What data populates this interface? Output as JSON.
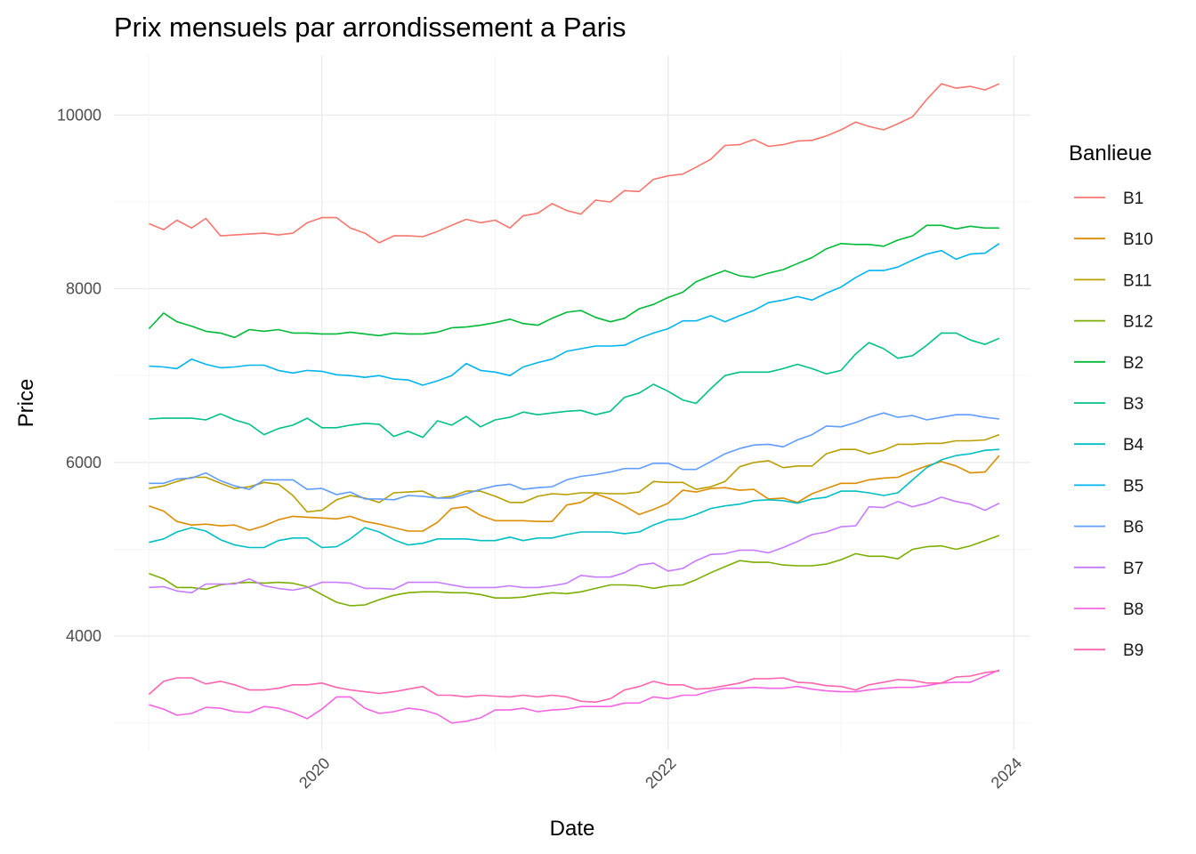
{
  "chart_data": {
    "type": "line",
    "title": "Prix mensuels par arrondissement a Paris",
    "xlabel": "Date",
    "ylabel": "Price",
    "x_ticks": [
      "2020",
      "2022",
      "2024"
    ],
    "y_ticks": [
      "4000",
      "6000",
      "8000",
      "10000"
    ],
    "xlim": [
      "2018-10-19",
      "2024-02-05"
    ],
    "ylim": [
      2690,
      10690
    ],
    "grid": true,
    "legend": {
      "title": "Banlieue",
      "position": "right"
    },
    "x": [
      "2019-01-01",
      "2019-02-01",
      "2019-03-01",
      "2019-04-01",
      "2019-05-01",
      "2019-06-01",
      "2019-07-01",
      "2019-08-01",
      "2019-09-01",
      "2019-10-01",
      "2019-11-01",
      "2019-12-01",
      "2020-01-01",
      "2020-02-01",
      "2020-03-01",
      "2020-04-01",
      "2020-05-01",
      "2020-06-01",
      "2020-07-01",
      "2020-08-01",
      "2020-09-01",
      "2020-10-01",
      "2020-11-01",
      "2020-12-01",
      "2021-01-01",
      "2021-02-01",
      "2021-03-01",
      "2021-04-01",
      "2021-05-01",
      "2021-06-01",
      "2021-07-01",
      "2021-08-01",
      "2021-09-01",
      "2021-10-01",
      "2021-11-01",
      "2021-12-01",
      "2022-01-01",
      "2022-02-01",
      "2022-03-01",
      "2022-04-01",
      "2022-05-01",
      "2022-06-01",
      "2022-07-01",
      "2022-08-01",
      "2022-09-01",
      "2022-10-01",
      "2022-11-01",
      "2022-12-01",
      "2023-01-01",
      "2023-02-01",
      "2023-03-01",
      "2023-04-01",
      "2023-05-01",
      "2023-06-01",
      "2023-07-01",
      "2023-08-01",
      "2023-09-01",
      "2023-10-01",
      "2023-11-01",
      "2023-12-01"
    ],
    "series": [
      {
        "name": "B1",
        "color": "#F8766D",
        "values": [
          8750,
          8680,
          8790,
          8700,
          8810,
          8610,
          8620,
          8630,
          8640,
          8620,
          8640,
          8760,
          8820,
          8820,
          8700,
          8640,
          8530,
          8610,
          8610,
          8600,
          8660,
          8730,
          8800,
          8760,
          8790,
          8700,
          8840,
          8870,
          8980,
          8900,
          8860,
          9020,
          9000,
          9130,
          9120,
          9260,
          9300,
          9320,
          9400,
          9490,
          9650,
          9660,
          9720,
          9640,
          9660,
          9700,
          9710,
          9760,
          9830,
          9920,
          9870,
          9830,
          9900,
          9980,
          10180,
          10360,
          10310,
          10330,
          10290,
          10360
        ]
      },
      {
        "name": "B10",
        "color": "#DE8C00",
        "values": [
          5500,
          5440,
          5320,
          5280,
          5290,
          5270,
          5280,
          5220,
          5270,
          5340,
          5380,
          5370,
          5360,
          5350,
          5380,
          5320,
          5290,
          5250,
          5210,
          5210,
          5310,
          5470,
          5490,
          5390,
          5330,
          5330,
          5330,
          5320,
          5320,
          5510,
          5540,
          5640,
          5580,
          5500,
          5400,
          5460,
          5530,
          5680,
          5660,
          5700,
          5710,
          5680,
          5690,
          5580,
          5590,
          5540,
          5640,
          5700,
          5760,
          5760,
          5800,
          5820,
          5830,
          5900,
          5960,
          6010,
          5960,
          5880,
          5890,
          6080
        ]
      },
      {
        "name": "B11",
        "color": "#B79F00",
        "values": [
          5700,
          5730,
          5780,
          5830,
          5830,
          5760,
          5700,
          5720,
          5770,
          5750,
          5620,
          5430,
          5450,
          5570,
          5620,
          5590,
          5540,
          5650,
          5660,
          5670,
          5590,
          5610,
          5670,
          5670,
          5610,
          5540,
          5540,
          5610,
          5640,
          5630,
          5650,
          5650,
          5640,
          5640,
          5660,
          5780,
          5770,
          5770,
          5690,
          5720,
          5780,
          5950,
          6000,
          6020,
          5940,
          5960,
          5960,
          6100,
          6150,
          6150,
          6100,
          6140,
          6210,
          6210,
          6220,
          6220,
          6250,
          6250,
          6260,
          6320
        ]
      },
      {
        "name": "B12",
        "color": "#7CAE00",
        "values": [
          4720,
          4660,
          4560,
          4560,
          4540,
          4590,
          4610,
          4620,
          4610,
          4620,
          4610,
          4570,
          4480,
          4390,
          4350,
          4360,
          4420,
          4470,
          4500,
          4510,
          4510,
          4500,
          4500,
          4480,
          4440,
          4440,
          4450,
          4480,
          4500,
          4490,
          4510,
          4550,
          4590,
          4590,
          4580,
          4550,
          4580,
          4590,
          4650,
          4730,
          4800,
          4870,
          4850,
          4850,
          4820,
          4810,
          4810,
          4830,
          4880,
          4950,
          4920,
          4920,
          4890,
          5000,
          5030,
          5040,
          5000,
          5040,
          5100,
          5160
        ]
      },
      {
        "name": "B2",
        "color": "#00BA38",
        "values": [
          7540,
          7720,
          7620,
          7570,
          7510,
          7490,
          7440,
          7530,
          7510,
          7530,
          7490,
          7490,
          7480,
          7480,
          7500,
          7480,
          7460,
          7490,
          7480,
          7480,
          7500,
          7550,
          7560,
          7580,
          7610,
          7650,
          7600,
          7580,
          7660,
          7730,
          7750,
          7670,
          7620,
          7660,
          7770,
          7820,
          7900,
          7960,
          8080,
          8150,
          8210,
          8150,
          8130,
          8180,
          8220,
          8290,
          8360,
          8460,
          8520,
          8510,
          8510,
          8490,
          8560,
          8610,
          8730,
          8730,
          8690,
          8720,
          8700,
          8700
        ]
      },
      {
        "name": "B3",
        "color": "#00C08B",
        "values": [
          6500,
          6510,
          6510,
          6510,
          6490,
          6560,
          6490,
          6440,
          6320,
          6390,
          6430,
          6510,
          6400,
          6400,
          6430,
          6450,
          6440,
          6300,
          6360,
          6290,
          6480,
          6430,
          6530,
          6410,
          6490,
          6520,
          6580,
          6550,
          6570,
          6590,
          6600,
          6550,
          6590,
          6750,
          6800,
          6900,
          6820,
          6720,
          6680,
          6850,
          7000,
          7040,
          7040,
          7040,
          7080,
          7130,
          7080,
          7020,
          7060,
          7250,
          7380,
          7310,
          7200,
          7230,
          7350,
          7490,
          7490,
          7410,
          7360,
          7430
        ]
      },
      {
        "name": "B4",
        "color": "#00BFC4",
        "values": [
          5080,
          5120,
          5200,
          5250,
          5210,
          5110,
          5050,
          5020,
          5020,
          5100,
          5130,
          5130,
          5020,
          5030,
          5120,
          5250,
          5200,
          5110,
          5050,
          5070,
          5120,
          5120,
          5120,
          5100,
          5100,
          5140,
          5100,
          5130,
          5130,
          5170,
          5200,
          5200,
          5200,
          5180,
          5200,
          5280,
          5340,
          5350,
          5400,
          5470,
          5500,
          5520,
          5560,
          5570,
          5560,
          5530,
          5580,
          5600,
          5670,
          5670,
          5650,
          5620,
          5650,
          5800,
          5940,
          6030,
          6080,
          6100,
          6140,
          6150
        ]
      },
      {
        "name": "B5",
        "color": "#00B4F0",
        "values": [
          7110,
          7100,
          7080,
          7190,
          7130,
          7090,
          7100,
          7120,
          7120,
          7060,
          7030,
          7060,
          7050,
          7010,
          7000,
          6980,
          7000,
          6960,
          6950,
          6890,
          6940,
          7000,
          7140,
          7060,
          7040,
          7000,
          7100,
          7150,
          7190,
          7280,
          7310,
          7340,
          7340,
          7350,
          7430,
          7490,
          7540,
          7630,
          7630,
          7690,
          7620,
          7690,
          7750,
          7840,
          7870,
          7910,
          7870,
          7950,
          8020,
          8130,
          8210,
          8210,
          8250,
          8330,
          8400,
          8440,
          8340,
          8400,
          8410,
          8520
        ]
      },
      {
        "name": "B6",
        "color": "#619CFF",
        "values": [
          5760,
          5760,
          5810,
          5820,
          5880,
          5790,
          5730,
          5690,
          5800,
          5800,
          5800,
          5690,
          5700,
          5630,
          5660,
          5580,
          5580,
          5570,
          5620,
          5610,
          5590,
          5590,
          5640,
          5690,
          5730,
          5750,
          5690,
          5710,
          5720,
          5800,
          5840,
          5860,
          5890,
          5930,
          5930,
          5990,
          5990,
          5920,
          5920,
          6010,
          6100,
          6160,
          6200,
          6210,
          6180,
          6260,
          6320,
          6420,
          6410,
          6460,
          6520,
          6570,
          6520,
          6540,
          6490,
          6520,
          6550,
          6550,
          6520,
          6500
        ]
      },
      {
        "name": "B7",
        "color": "#C77CFF",
        "values": [
          4560,
          4570,
          4520,
          4500,
          4600,
          4600,
          4600,
          4660,
          4580,
          4550,
          4530,
          4560,
          4620,
          4620,
          4610,
          4550,
          4550,
          4540,
          4620,
          4620,
          4620,
          4590,
          4560,
          4560,
          4560,
          4580,
          4560,
          4560,
          4580,
          4610,
          4700,
          4680,
          4680,
          4730,
          4820,
          4840,
          4750,
          4780,
          4870,
          4940,
          4950,
          4990,
          4990,
          4960,
          5020,
          5090,
          5170,
          5200,
          5260,
          5270,
          5490,
          5480,
          5550,
          5490,
          5530,
          5600,
          5550,
          5520,
          5450,
          5530
        ]
      },
      {
        "name": "B8",
        "color": "#F564E3",
        "values": [
          3210,
          3160,
          3090,
          3110,
          3180,
          3170,
          3130,
          3120,
          3190,
          3170,
          3120,
          3050,
          3160,
          3300,
          3300,
          3170,
          3110,
          3130,
          3170,
          3150,
          3100,
          3000,
          3020,
          3060,
          3150,
          3150,
          3170,
          3130,
          3150,
          3160,
          3190,
          3190,
          3190,
          3230,
          3230,
          3300,
          3280,
          3320,
          3320,
          3370,
          3400,
          3400,
          3410,
          3400,
          3400,
          3420,
          3390,
          3370,
          3360,
          3360,
          3380,
          3400,
          3410,
          3410,
          3430,
          3460,
          3470,
          3470,
          3540,
          3610
        ]
      },
      {
        "name": "B9",
        "color": "#FF64B0",
        "values": [
          3330,
          3480,
          3520,
          3520,
          3450,
          3480,
          3440,
          3380,
          3380,
          3400,
          3440,
          3440,
          3460,
          3410,
          3380,
          3360,
          3340,
          3360,
          3390,
          3420,
          3320,
          3320,
          3300,
          3320,
          3310,
          3300,
          3320,
          3300,
          3320,
          3300,
          3250,
          3240,
          3280,
          3380,
          3420,
          3480,
          3440,
          3440,
          3390,
          3400,
          3430,
          3460,
          3510,
          3510,
          3520,
          3470,
          3460,
          3430,
          3420,
          3380,
          3440,
          3470,
          3500,
          3490,
          3460,
          3460,
          3530,
          3540,
          3580,
          3600
        ]
      }
    ]
  }
}
